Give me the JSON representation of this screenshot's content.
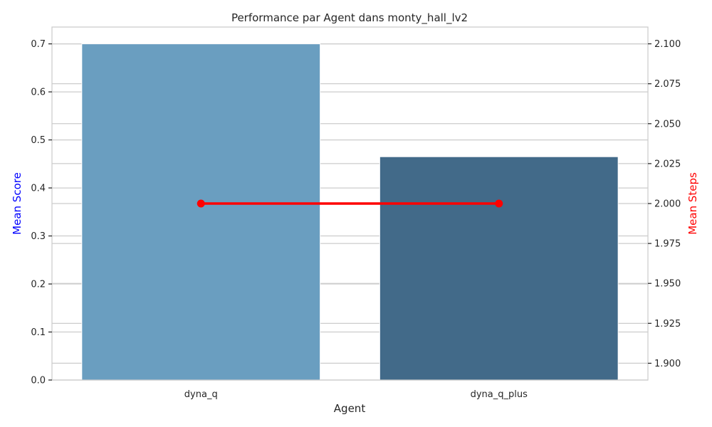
{
  "chart_data": {
    "type": "bar",
    "title": "Performance par Agent dans monty_hall_lv2",
    "xlabel": "Agent",
    "categories": [
      "dyna_q",
      "dyna_q_plus"
    ],
    "series": [
      {
        "name": "Mean Score",
        "axis": "left",
        "type": "bar",
        "values": [
          0.7,
          0.465
        ],
        "colors": [
          "#6a9ec0",
          "#426a89"
        ]
      },
      {
        "name": "Mean Steps",
        "axis": "right",
        "type": "line",
        "values": [
          2.0,
          2.0
        ],
        "color": "#ff0000"
      }
    ],
    "left_axis": {
      "label": "Mean Score",
      "label_color": "#0000ff",
      "ylim": [
        0,
        0.735
      ],
      "ticks": [
        0.0,
        0.1,
        0.2,
        0.3,
        0.4,
        0.5,
        0.6,
        0.7
      ],
      "tick_labels": [
        "0.0",
        "0.1",
        "0.2",
        "0.3",
        "0.4",
        "0.5",
        "0.6",
        "0.7"
      ]
    },
    "right_axis": {
      "label": "Mean Steps",
      "label_color": "#ff0000",
      "ylim": [
        1.8895,
        2.1105
      ],
      "ticks": [
        1.9,
        1.925,
        1.95,
        1.975,
        2.0,
        2.025,
        2.05,
        2.075,
        2.1
      ],
      "tick_labels": [
        "1.900",
        "1.925",
        "1.950",
        "1.975",
        "2.000",
        "2.025",
        "2.050",
        "2.075",
        "2.100"
      ]
    },
    "grid": true,
    "legend": "none"
  }
}
